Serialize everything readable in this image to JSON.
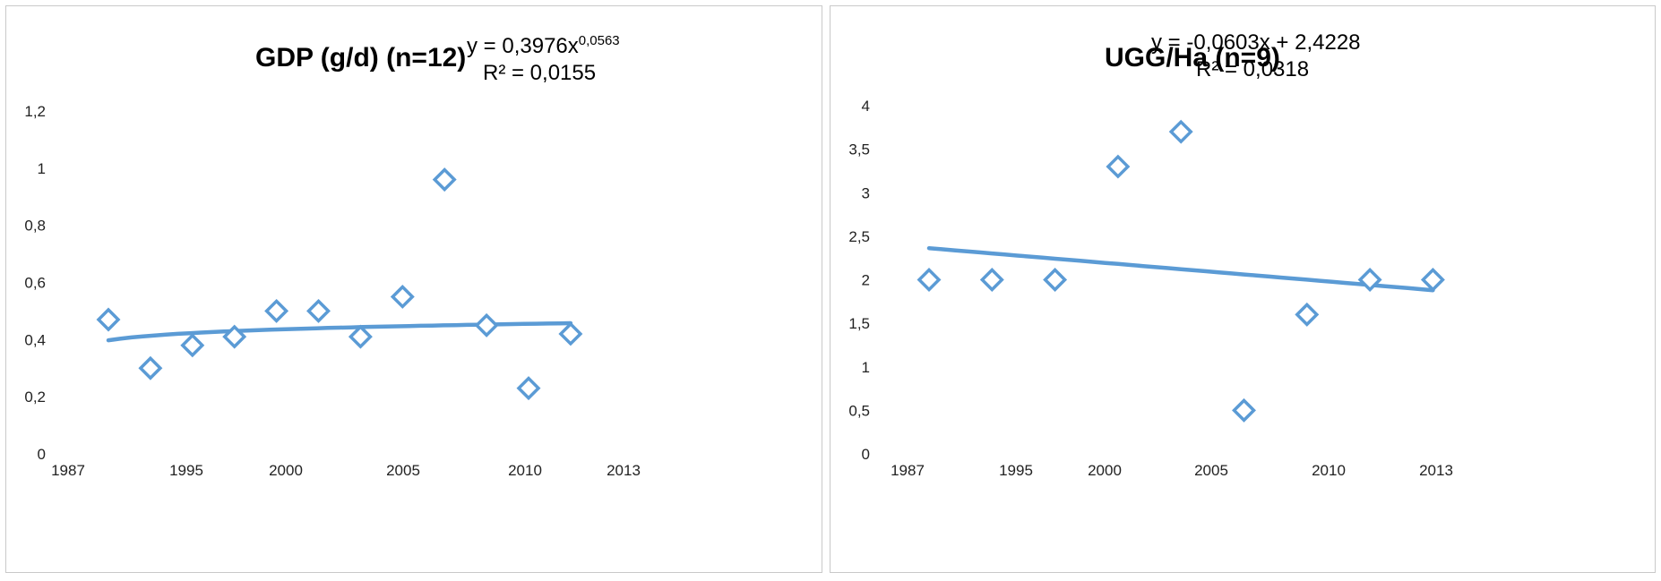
{
  "chart_data": [
    {
      "type": "scatter",
      "title": "GDP (g/d) (n=12)",
      "trendline": {
        "kind": "power",
        "equation_main": "y = 0,3976x",
        "equation_exponent": "0,0563",
        "r2": "R² = 0,0155",
        "a": 0.3976,
        "b": 0.0563
      },
      "x_ticks": [
        "1987",
        "1995",
        "2000",
        "2005",
        "2010",
        "2013"
      ],
      "y_ticks": [
        "0",
        "0,2",
        "0,4",
        "0,6",
        "0,8",
        "1",
        "1,2"
      ],
      "ylim": [
        0,
        1.2
      ],
      "points": [
        {
          "x": 1,
          "y": 0.47
        },
        {
          "x": 2,
          "y": 0.3
        },
        {
          "x": 3,
          "y": 0.38
        },
        {
          "x": 4,
          "y": 0.41
        },
        {
          "x": 5,
          "y": 0.5
        },
        {
          "x": 6,
          "y": 0.5
        },
        {
          "x": 7,
          "y": 0.41
        },
        {
          "x": 8,
          "y": 0.55
        },
        {
          "x": 9,
          "y": 0.96
        },
        {
          "x": 10,
          "y": 0.45
        },
        {
          "x": 11,
          "y": 0.23
        },
        {
          "x": 12,
          "y": 0.42
        }
      ],
      "color": "#5b9bd5"
    },
    {
      "type": "scatter",
      "title": "UGG/Ha (n=9)",
      "trendline": {
        "kind": "linear",
        "equation_main": "y = -0,0603x + 2,4228",
        "r2": "R² = 0,0318",
        "slope": -0.0603,
        "intercept": 2.4228
      },
      "x_ticks": [
        "1987",
        "1995",
        "2000",
        "2005",
        "2010",
        "2013"
      ],
      "y_ticks": [
        "0",
        "0,5",
        "1",
        "1,5",
        "2",
        "2,5",
        "3",
        "3,5",
        "4"
      ],
      "ylim": [
        0,
        4
      ],
      "points": [
        {
          "x": 1,
          "y": 2.0
        },
        {
          "x": 2,
          "y": 2.0
        },
        {
          "x": 3,
          "y": 2.0
        },
        {
          "x": 4,
          "y": 3.3
        },
        {
          "x": 5,
          "y": 3.7
        },
        {
          "x": 6,
          "y": 0.5
        },
        {
          "x": 7,
          "y": 1.6
        },
        {
          "x": 8,
          "y": 2.0
        },
        {
          "x": 9,
          "y": 2.0
        }
      ],
      "color": "#5b9bd5"
    }
  ]
}
